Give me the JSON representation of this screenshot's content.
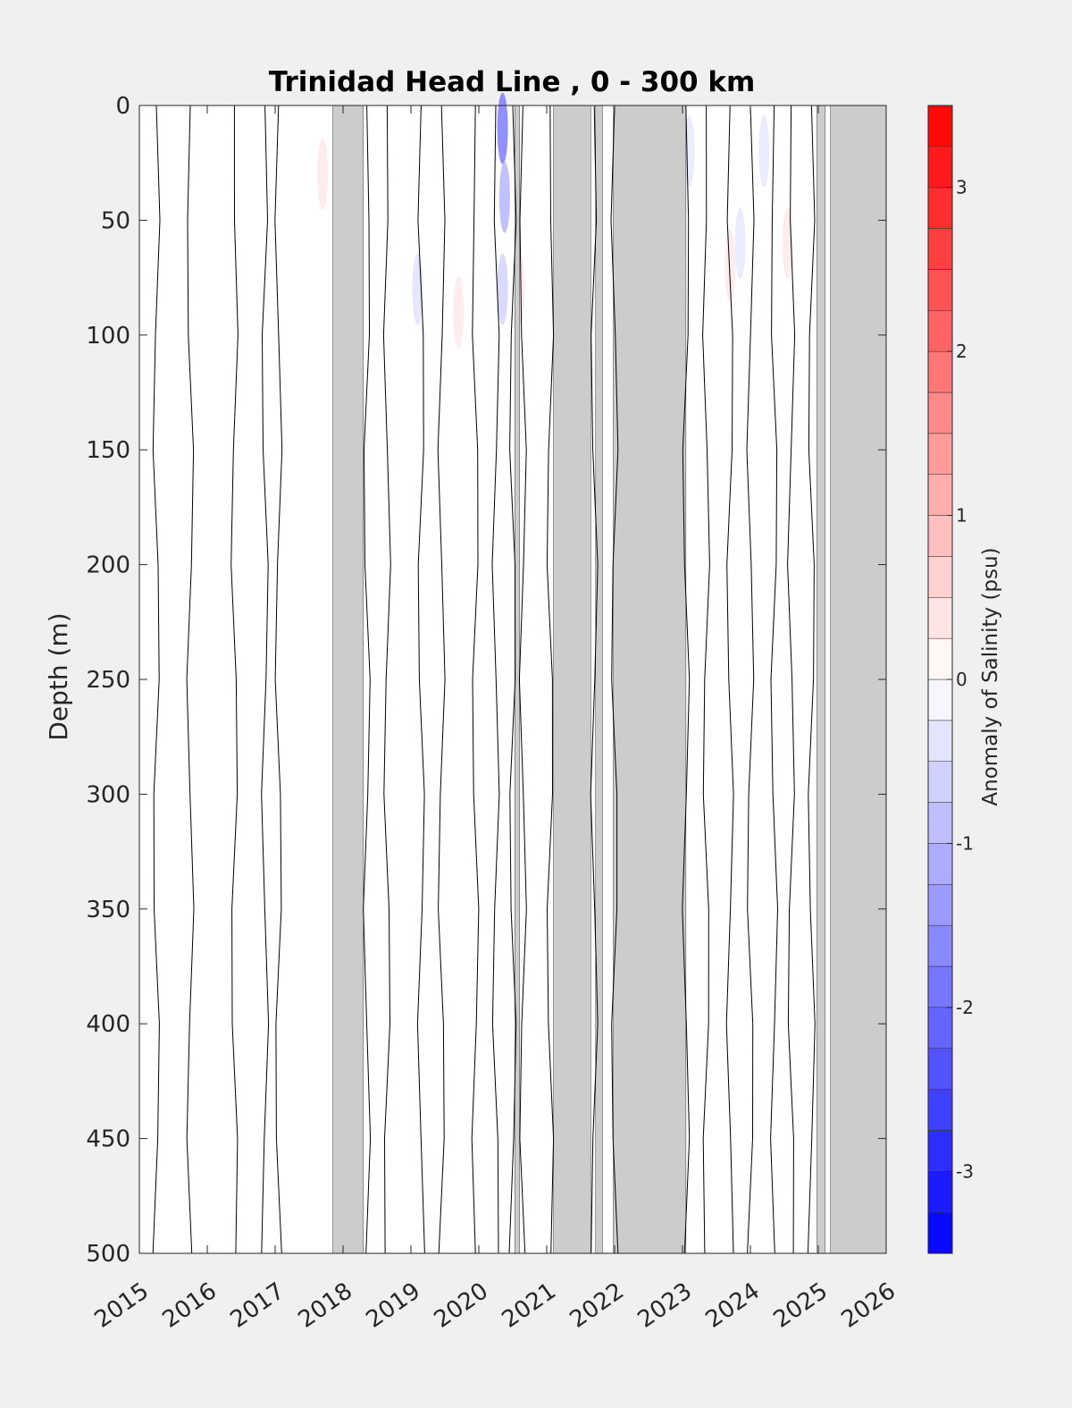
{
  "chart_data": {
    "type": "heatmap",
    "title": "Trinidad Head Line , 0 - 300 km",
    "ylabel": "Depth (m)",
    "xlabel": "",
    "xlim": [
      2015,
      2026
    ],
    "ylim": [
      0,
      500
    ],
    "y_reversed": true,
    "x_ticks": [
      "2015",
      "2016",
      "2017",
      "2018",
      "2019",
      "2020",
      "2021",
      "2022",
      "2023",
      "2024",
      "2025",
      "2026"
    ],
    "y_ticks": [
      "0",
      "50",
      "100",
      "150",
      "200",
      "250",
      "300",
      "350",
      "400",
      "450",
      "500"
    ],
    "colorbar": {
      "label": "Anomaly of Salinity (psu)",
      "range": [
        -3.5,
        3.5
      ],
      "step": 0.25,
      "ticks": [
        "-3",
        "-2",
        "-1",
        "0",
        "1",
        "2",
        "3"
      ],
      "colors": {
        "negative": "#0000ff",
        "zero": "#ffffff",
        "positive": "#ff0000"
      }
    },
    "missing_data_color": "#cccccc",
    "missing_data_periods": [
      [
        2017.85,
        2018.3
      ],
      [
        2020.53,
        2020.6
      ],
      [
        2021.1,
        2021.65
      ],
      [
        2021.72,
        2021.82
      ],
      [
        2021.98,
        2023.05
      ],
      [
        2024.98,
        2025.1
      ],
      [
        2025.18,
        2026.0
      ]
    ],
    "anomaly_patches": [
      {
        "x": 2020.35,
        "y": 10,
        "value": -1.8
      },
      {
        "x": 2020.38,
        "y": 40,
        "value": -1.0
      },
      {
        "x": 2020.35,
        "y": 80,
        "value": -0.6
      },
      {
        "x": 2019.1,
        "y": 80,
        "value": -0.4
      },
      {
        "x": 2017.7,
        "y": 30,
        "value": 0.3
      },
      {
        "x": 2019.7,
        "y": 90,
        "value": 0.3
      },
      {
        "x": 2020.6,
        "y": 80,
        "value": 0.3
      },
      {
        "x": 2023.1,
        "y": 20,
        "value": -0.3
      },
      {
        "x": 2023.7,
        "y": 70,
        "value": 0.3
      },
      {
        "x": 2023.85,
        "y": 60,
        "value": -0.3
      },
      {
        "x": 2024.2,
        "y": 20,
        "value": -0.3
      },
      {
        "x": 2024.55,
        "y": 60,
        "value": 0.3
      }
    ],
    "zero_contours_x": [
      2015.25,
      2015.75,
      2016.4,
      2016.85,
      2017.05,
      2018.35,
      2018.65,
      2019.15,
      2019.45,
      2019.95,
      2020.25,
      2020.5,
      2020.65,
      2021.05,
      2021.7,
      2022.0,
      2023.05,
      2023.35,
      2023.7,
      2024.0,
      2024.35,
      2024.6,
      2024.9
    ]
  }
}
